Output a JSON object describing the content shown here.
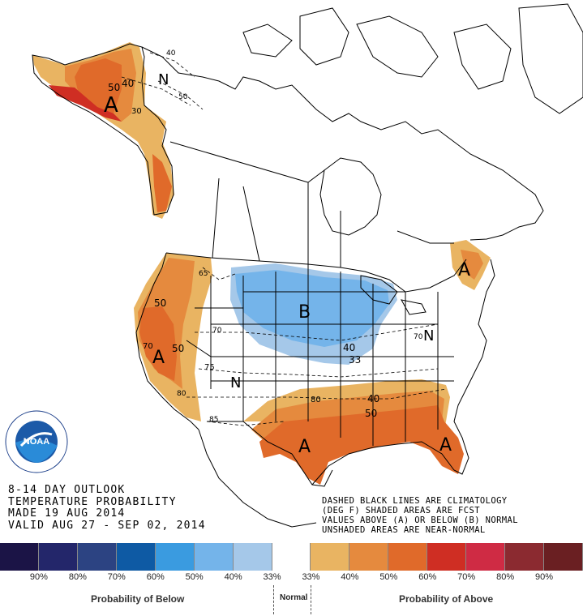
{
  "title_block": {
    "line1": "8-14 DAY OUTLOOK",
    "line2": "TEMPERATURE PROBABILITY",
    "line3": "MADE  19 AUG 2014",
    "line4": "VALID  AUG 27 - SEP 02, 2014"
  },
  "notes": {
    "line1": "DASHED BLACK LINES ARE CLIMATOLOGY",
    "line2": "(DEG F) SHADED AREAS ARE FCST",
    "line3": "VALUES ABOVE (A) OR BELOW (B) NORMAL",
    "line4": "UNSHADED AREAS ARE NEAR-NORMAL"
  },
  "map_labels": {
    "A": "A",
    "B": "B",
    "N": "N"
  },
  "contours": {
    "c30": "30",
    "c40": "40",
    "c50": "50",
    "c60": "60",
    "c65": "65",
    "c70": "70",
    "c75": "75",
    "c80": "80",
    "c85": "85",
    "c33": "33"
  },
  "logo_text": "NOAA",
  "legend": {
    "below_label": "Probability of Below",
    "normal_label": "Normal",
    "above_label": "Probability of Above",
    "swatches": [
      {
        "color": "#1b1446"
      },
      {
        "color": "#23266a"
      },
      {
        "color": "#2c4382"
      },
      {
        "color": "#0e5aa4"
      },
      {
        "color": "#3a9be0"
      },
      {
        "color": "#74b4ea"
      },
      {
        "color": "#a5c8e9"
      },
      {
        "color": "#ffffff"
      },
      {
        "color": "#e9b462"
      },
      {
        "color": "#e58a3e"
      },
      {
        "color": "#e06a2a"
      },
      {
        "color": "#cf2e23"
      },
      {
        "color": "#cf2b44"
      },
      {
        "color": "#8b2a30"
      },
      {
        "color": "#6a1f22"
      }
    ],
    "percent_labels": [
      "90%",
      "80%",
      "70%",
      "60%",
      "50%",
      "40%",
      "33%",
      "33%",
      "40%",
      "50%",
      "60%",
      "70%",
      "80%",
      "90%"
    ]
  },
  "colors": {
    "above_40": "#e9b462",
    "above_50": "#e58a3e",
    "above_60": "#e06a2a",
    "above_70": "#cf2e23",
    "below_40": "#74b4ea",
    "below_33": "#a5c8e9"
  }
}
